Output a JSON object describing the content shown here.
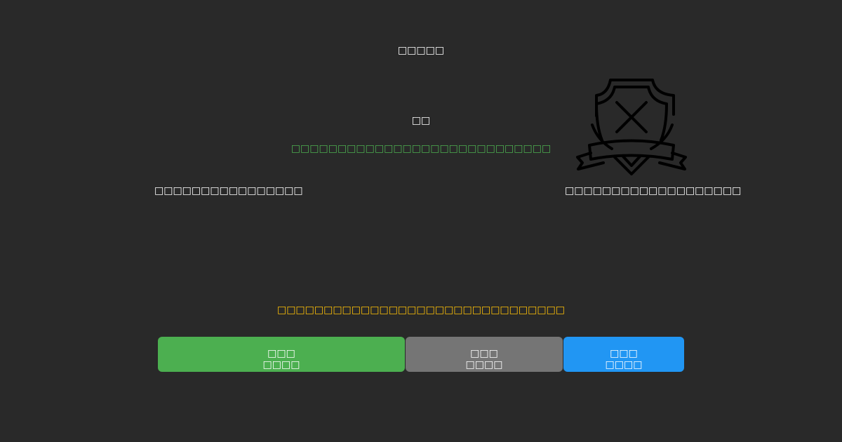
{
  "header": {
    "title": "□□□□□"
  },
  "main": {
    "subtitle": "□□",
    "status_message": "□□□□□□□□□□□□□□□□□□□□□□□□□□□□",
    "left_label": "□□□□□□□□□□□□□□□□",
    "right_label": "□□□□□□□□□□□□□□□□□□□",
    "warning_message": "□□□□□□□□□□□□□□□□□□□□□□□□□□□□□□□",
    "icon": "shield-x-icon"
  },
  "buttons": [
    {
      "line1": "□□□",
      "line2": "□□□□",
      "color": "#4caf50"
    },
    {
      "line1": "□□□",
      "line2": "□□□□",
      "color": "#757575"
    },
    {
      "line1": "□□□",
      "line2": "□□□□",
      "color": "#2196f3"
    }
  ],
  "colors": {
    "background": "#292929",
    "status": "#4caf50",
    "warning": "#ffc107"
  }
}
